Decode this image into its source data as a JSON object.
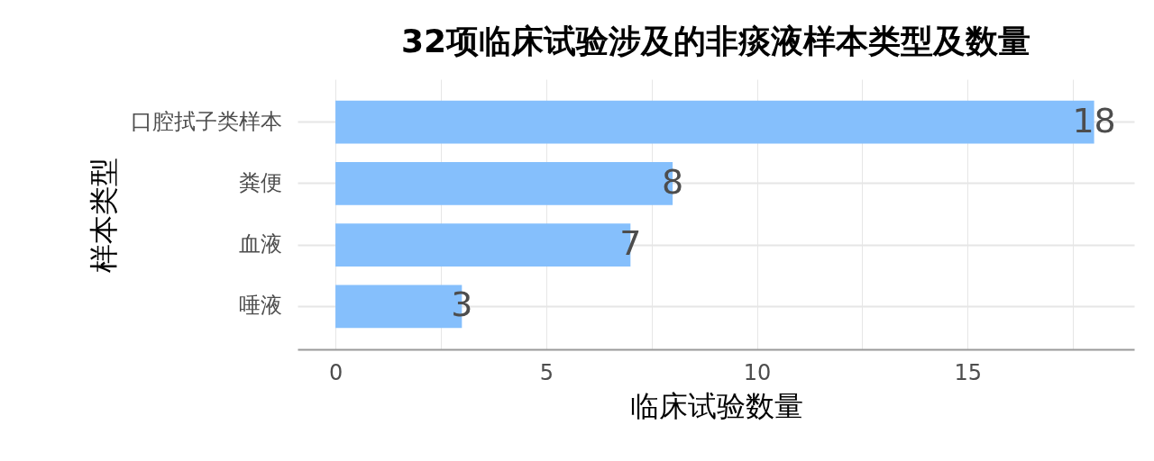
{
  "chart_data": {
    "type": "bar",
    "orientation": "horizontal",
    "title": "32项临床试验涉及的非痰液样本类型及数量",
    "xlabel": "临床试验数量",
    "ylabel": "样本类型",
    "categories": [
      "口腔拭子类样本",
      "粪便",
      "血液",
      "唾液"
    ],
    "values": [
      18,
      8,
      7,
      3
    ],
    "color": "#85bffc",
    "data_labels": true,
    "xlim": [
      -0.9,
      18.95
    ],
    "xticks": [
      0,
      {
        "value": 2.5,
        "label": null
      },
      5,
      {
        "value": 7.5,
        "label": null
      },
      10,
      {
        "value": 12.5,
        "label": null
      },
      15,
      {
        "value": 17.5,
        "label": null
      }
    ],
    "grid": true
  }
}
